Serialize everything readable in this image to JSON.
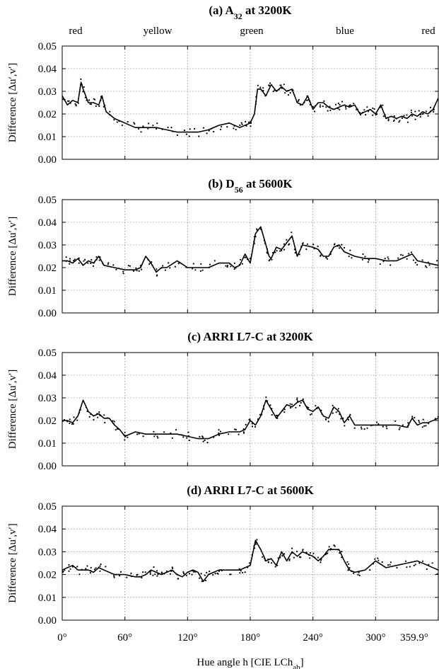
{
  "hue_names": [
    "red",
    "yellow",
    "green",
    "blue",
    "red"
  ],
  "xlabel_parts": [
    "Hue angle h [CIE LCh",
    "ab",
    "]"
  ],
  "x_tick_labels": [
    "0°",
    "60°",
    "120°",
    "180°",
    "240°",
    "300°",
    "359.9°"
  ],
  "y_tick_labels": [
    "0.00",
    "0.01",
    "0.02",
    "0.03",
    "0.04",
    "0.05"
  ],
  "chart_data": [
    {
      "type": "line+scatter",
      "title_parts": [
        "(a) A",
        "32",
        " at 3200K"
      ],
      "xlabel": "Hue angle h [CIE LChab]",
      "ylabel": "Difference [Δu′,v′]",
      "xlim": [
        0,
        360
      ],
      "ylim": [
        0,
        0.05
      ],
      "x_ticks": [
        0,
        60,
        120,
        180,
        240,
        300,
        359.9
      ],
      "y_ticks": [
        0,
        0.01,
        0.02,
        0.03,
        0.04,
        0.05
      ],
      "grid": true,
      "series": [
        {
          "x": [
            0,
            5,
            10,
            15,
            18,
            20,
            25,
            30,
            35,
            38,
            42,
            50,
            60,
            70,
            80,
            90,
            100,
            110,
            120,
            130,
            140,
            150,
            160,
            170,
            175,
            180,
            184,
            187,
            190,
            195,
            200,
            205,
            210,
            215,
            220,
            225,
            230,
            235,
            240,
            245,
            250,
            255,
            260,
            265,
            270,
            275,
            280,
            285,
            290,
            295,
            300,
            305,
            310,
            315,
            320,
            325,
            330,
            335,
            340,
            345,
            350,
            355,
            360
          ],
          "y": [
            0.028,
            0.024,
            0.026,
            0.025,
            0.034,
            0.031,
            0.025,
            0.025,
            0.024,
            0.028,
            0.021,
            0.018,
            0.016,
            0.014,
            0.014,
            0.014,
            0.013,
            0.012,
            0.012,
            0.012,
            0.013,
            0.015,
            0.016,
            0.014,
            0.015,
            0.016,
            0.02,
            0.031,
            0.031,
            0.028,
            0.033,
            0.03,
            0.032,
            0.03,
            0.031,
            0.025,
            0.024,
            0.028,
            0.022,
            0.025,
            0.025,
            0.023,
            0.022,
            0.023,
            0.024,
            0.023,
            0.024,
            0.02,
            0.021,
            0.022,
            0.02,
            0.024,
            0.018,
            0.019,
            0.018,
            0.019,
            0.018,
            0.02,
            0.019,
            0.021,
            0.02,
            0.022,
            0.027
          ]
        }
      ]
    },
    {
      "type": "line+scatter",
      "title_parts": [
        "(b) D",
        "56",
        " at 5600K"
      ],
      "xlabel": "Hue angle h [CIE LChab]",
      "ylabel": "Difference [Δu′,v′]",
      "xlim": [
        0,
        360
      ],
      "ylim": [
        0,
        0.05
      ],
      "x_ticks": [
        0,
        60,
        120,
        180,
        240,
        300,
        359.9
      ],
      "y_ticks": [
        0,
        0.01,
        0.02,
        0.03,
        0.04,
        0.05
      ],
      "grid": true,
      "series": [
        {
          "x": [
            0,
            5,
            10,
            15,
            20,
            25,
            30,
            35,
            40,
            50,
            60,
            70,
            75,
            80,
            85,
            90,
            95,
            100,
            110,
            120,
            130,
            140,
            150,
            160,
            165,
            170,
            175,
            180,
            185,
            190,
            195,
            198,
            200,
            205,
            210,
            215,
            220,
            225,
            230,
            240,
            245,
            250,
            255,
            260,
            265,
            270,
            280,
            290,
            300,
            310,
            320,
            330,
            335,
            340,
            350,
            360
          ],
          "y": [
            0.023,
            0.023,
            0.022,
            0.024,
            0.021,
            0.023,
            0.022,
            0.025,
            0.021,
            0.02,
            0.019,
            0.019,
            0.02,
            0.025,
            0.022,
            0.018,
            0.02,
            0.02,
            0.023,
            0.02,
            0.02,
            0.02,
            0.022,
            0.022,
            0.02,
            0.021,
            0.026,
            0.022,
            0.035,
            0.038,
            0.03,
            0.025,
            0.024,
            0.029,
            0.028,
            0.031,
            0.034,
            0.025,
            0.03,
            0.029,
            0.028,
            0.025,
            0.025,
            0.029,
            0.03,
            0.027,
            0.025,
            0.024,
            0.024,
            0.023,
            0.023,
            0.025,
            0.026,
            0.023,
            0.022,
            0.021
          ]
        }
      ]
    },
    {
      "type": "line+scatter",
      "title_parts": [
        "(c) ARRI L7-C at 3200K"
      ],
      "xlabel": "Hue angle h [CIE LChab]",
      "ylabel": "Difference [Δu′,v′]",
      "xlim": [
        0,
        360
      ],
      "ylim": [
        0,
        0.05
      ],
      "x_ticks": [
        0,
        60,
        120,
        180,
        240,
        300,
        359.9
      ],
      "y_ticks": [
        0,
        0.01,
        0.02,
        0.03,
        0.04,
        0.05
      ],
      "grid": true,
      "series": [
        {
          "x": [
            0,
            5,
            10,
            15,
            20,
            25,
            30,
            35,
            40,
            45,
            50,
            55,
            60,
            70,
            80,
            90,
            100,
            110,
            120,
            130,
            135,
            140,
            150,
            160,
            170,
            175,
            180,
            185,
            190,
            195,
            200,
            205,
            210,
            215,
            220,
            225,
            230,
            235,
            240,
            245,
            250,
            255,
            260,
            265,
            270,
            275,
            280,
            290,
            300,
            310,
            320,
            330,
            335,
            340,
            345,
            350,
            360
          ],
          "y": [
            0.02,
            0.02,
            0.019,
            0.022,
            0.029,
            0.024,
            0.022,
            0.023,
            0.021,
            0.021,
            0.018,
            0.016,
            0.013,
            0.015,
            0.014,
            0.014,
            0.014,
            0.014,
            0.013,
            0.012,
            0.012,
            0.012,
            0.014,
            0.015,
            0.015,
            0.016,
            0.02,
            0.018,
            0.022,
            0.029,
            0.025,
            0.021,
            0.024,
            0.027,
            0.026,
            0.028,
            0.029,
            0.025,
            0.024,
            0.026,
            0.022,
            0.021,
            0.026,
            0.024,
            0.019,
            0.022,
            0.018,
            0.018,
            0.018,
            0.018,
            0.018,
            0.017,
            0.021,
            0.018,
            0.019,
            0.019,
            0.021
          ]
        }
      ]
    },
    {
      "type": "line+scatter",
      "title_parts": [
        "(d) ARRI L7-C at 5600K"
      ],
      "xlabel": "Hue angle h [CIE LChab]",
      "ylabel": "Difference [Δu′,v′]",
      "xlim": [
        0,
        360
      ],
      "ylim": [
        0,
        0.05
      ],
      "x_ticks": [
        0,
        60,
        120,
        180,
        240,
        300,
        359.9
      ],
      "y_ticks": [
        0,
        0.01,
        0.02,
        0.03,
        0.04,
        0.05
      ],
      "grid": true,
      "series": [
        {
          "x": [
            0,
            5,
            10,
            15,
            20,
            25,
            30,
            35,
            40,
            50,
            60,
            70,
            75,
            80,
            85,
            90,
            95,
            100,
            105,
            110,
            115,
            120,
            125,
            130,
            135,
            140,
            145,
            150,
            160,
            170,
            175,
            180,
            185,
            190,
            195,
            200,
            205,
            210,
            215,
            220,
            225,
            230,
            235,
            240,
            245,
            250,
            255,
            260,
            265,
            270,
            275,
            280,
            290,
            300,
            310,
            320,
            330,
            340,
            350,
            360
          ],
          "y": [
            0.022,
            0.023,
            0.024,
            0.022,
            0.022,
            0.022,
            0.021,
            0.023,
            0.022,
            0.02,
            0.02,
            0.019,
            0.019,
            0.02,
            0.022,
            0.021,
            0.02,
            0.021,
            0.022,
            0.02,
            0.019,
            0.021,
            0.022,
            0.021,
            0.017,
            0.02,
            0.021,
            0.022,
            0.022,
            0.022,
            0.023,
            0.024,
            0.035,
            0.031,
            0.026,
            0.027,
            0.024,
            0.03,
            0.026,
            0.03,
            0.028,
            0.03,
            0.029,
            0.028,
            0.026,
            0.028,
            0.031,
            0.031,
            0.031,
            0.026,
            0.022,
            0.021,
            0.022,
            0.026,
            0.023,
            0.024,
            0.025,
            0.026,
            0.024,
            0.022
          ]
        }
      ]
    }
  ]
}
